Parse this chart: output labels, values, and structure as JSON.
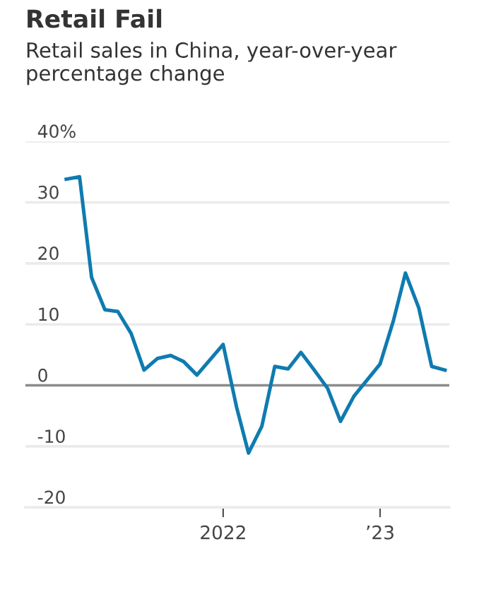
{
  "chart_data": {
    "type": "line",
    "title": "Retail Fail",
    "subtitle": "Retail sales in China, year-over-year percentage change",
    "x": [
      "2021-01",
      "2021-02",
      "2021-03",
      "2021-04",
      "2021-05",
      "2021-06",
      "2021-07",
      "2021-08",
      "2021-09",
      "2021-10",
      "2021-11",
      "2022-01",
      "2022-02",
      "2022-03",
      "2022-04",
      "2022-05",
      "2022-06",
      "2022-07",
      "2022-08",
      "2022-09",
      "2022-10",
      "2022-11",
      "2023-01",
      "2023-02",
      "2023-03",
      "2023-04",
      "2023-05",
      "2023-06"
    ],
    "series": [
      {
        "color": "#0f7bb0",
        "values": [
          33.8,
          34.2,
          17.7,
          12.4,
          12.1,
          8.5,
          2.5,
          4.4,
          4.9,
          3.9,
          1.7,
          6.7,
          -3.5,
          -11.1,
          -6.7,
          3.1,
          2.7,
          5.4,
          2.5,
          -0.5,
          -5.9,
          -1.8,
          3.5,
          10.6,
          18.4,
          12.7,
          3.1,
          2.5
        ]
      }
    ],
    "xlim": [
      "2020-09-28",
      "2023-06-11"
    ],
    "xticks": [
      {
        "value": "2022-01-01",
        "label": "2022"
      },
      {
        "value": "2023-01-01",
        "label": "’23"
      }
    ],
    "ylim": [
      -20,
      40
    ],
    "yticks": [
      {
        "value": -20,
        "label": "-20"
      },
      {
        "value": -10,
        "label": "-10"
      },
      0,
      10,
      20,
      30,
      {
        "value": 40,
        "label": "40%"
      }
    ],
    "grid": "y",
    "ref_lines": [
      {
        "axis": "y",
        "value": 0,
        "color": "#8c8c8c"
      }
    ],
    "marker": "none",
    "line_style": "solid"
  }
}
